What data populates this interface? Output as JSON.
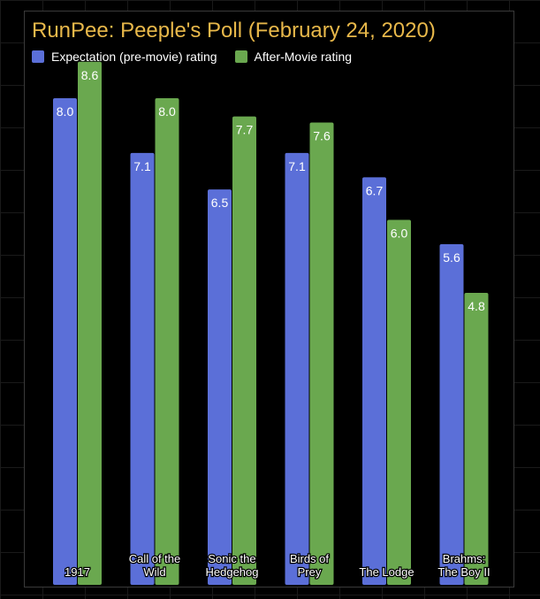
{
  "colors": {
    "expectation": "#5b6fd8",
    "after": "#6aa84f",
    "title": "#e8b84a",
    "text": "#ffffff"
  },
  "chart_data": {
    "type": "bar",
    "title": "RunPee: Peeple's Poll (February 24, 2020)",
    "xlabel": "",
    "ylabel": "",
    "ylim": [
      0,
      10
    ],
    "grid": false,
    "legend_position": "top-left",
    "categories": [
      "1917",
      "Call of the Wild",
      "Sonic the Hedgehog",
      "Birds of Prey",
      "The Lodge",
      "Brahms: The Boy II"
    ],
    "category_lines": [
      [
        "1917"
      ],
      [
        "Call of the",
        "Wild"
      ],
      [
        "Sonic the",
        "Hedgehog"
      ],
      [
        "Birds of",
        "Prey"
      ],
      [
        "The Lodge"
      ],
      [
        "Brahms:",
        "The Boy II"
      ]
    ],
    "series": [
      {
        "name": "Expectation (pre-movie) rating",
        "values": [
          8.0,
          7.1,
          6.5,
          7.1,
          6.7,
          5.6
        ]
      },
      {
        "name": "After-Movie rating",
        "values": [
          8.6,
          8.0,
          7.7,
          7.6,
          6.0,
          4.8
        ]
      }
    ]
  }
}
